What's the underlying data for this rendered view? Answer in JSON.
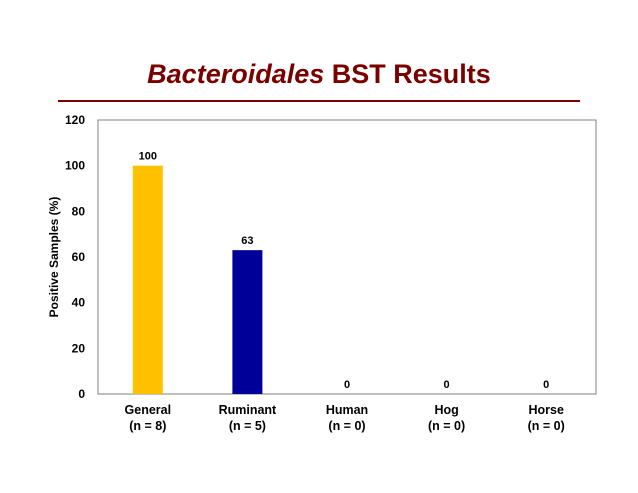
{
  "slide": {
    "title_italic": "Bacteroidales",
    "title_rest": " BST Results",
    "title_color": "#7a0000",
    "rule_color": "#7a0000"
  },
  "chart_data": {
    "type": "bar",
    "title": "Bacteroidales BST Results",
    "xlabel": "",
    "ylabel": "Positive Samples (%)",
    "ylim": [
      0,
      120
    ],
    "yticks": [
      0,
      20,
      40,
      60,
      80,
      100,
      120
    ],
    "categories": [
      "General",
      "Ruminant",
      "Human",
      "Hog",
      "Horse"
    ],
    "category_sublabels": [
      "(n = 8)",
      "(n = 5)",
      "(n = 0)",
      "(n = 0)",
      "(n = 0)"
    ],
    "values": [
      100,
      63,
      0,
      0,
      0
    ],
    "data_labels": [
      "100",
      "63",
      "0",
      "0",
      "0"
    ],
    "bar_colors": [
      "#ffc000",
      "#000099",
      "#000099",
      "#000099",
      "#000099"
    ],
    "grid": false,
    "legend": "none"
  }
}
